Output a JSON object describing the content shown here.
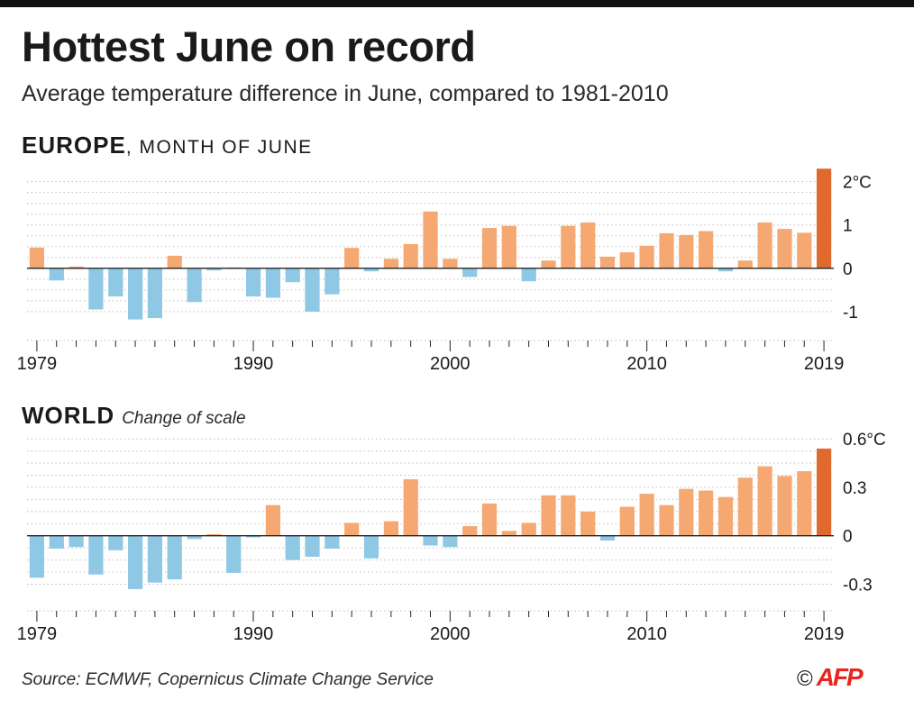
{
  "title": "Hottest June on record",
  "subtitle": "Average temperature difference in June, compared to 1981-2010",
  "source": "Source: ECMWF, Copernicus Climate Change Service",
  "credit": {
    "symbol": "©",
    "logo": "AFP"
  },
  "colors": {
    "negative": "#8fc8e4",
    "positive": "#f5a872",
    "latest": "#e0692e",
    "axis": "#222222",
    "grid": "#bdbdbd"
  },
  "europe": {
    "heading_big": "EUROPE",
    "heading_small": ", MONTH OF JUNE",
    "note": ""
  },
  "world": {
    "heading_big": "WORLD",
    "heading_small": "",
    "note": "Change of scale"
  },
  "chart_data": [
    {
      "type": "bar",
      "title": "EUROPE, MONTH OF JUNE",
      "x": [
        1979,
        1980,
        1981,
        1982,
        1983,
        1984,
        1985,
        1986,
        1987,
        1988,
        1989,
        1990,
        1991,
        1992,
        1993,
        1994,
        1995,
        1996,
        1997,
        1998,
        1999,
        2000,
        2001,
        2002,
        2003,
        2004,
        2005,
        2006,
        2007,
        2008,
        2009,
        2010,
        2011,
        2012,
        2013,
        2014,
        2015,
        2016,
        2017,
        2018,
        2019
      ],
      "values": [
        0.48,
        -0.28,
        0.04,
        -0.95,
        -0.65,
        -1.18,
        -1.15,
        0.29,
        -0.78,
        -0.05,
        0.02,
        -0.65,
        -0.68,
        -0.32,
        -1.0,
        -0.6,
        0.47,
        -0.07,
        0.22,
        0.56,
        1.31,
        0.22,
        -0.2,
        0.93,
        0.98,
        -0.3,
        0.18,
        0.98,
        1.06,
        0.27,
        0.37,
        0.52,
        0.81,
        0.77,
        0.86,
        -0.07,
        0.18,
        1.06,
        0.91,
        0.82,
        2.3
      ],
      "xticks": [
        "1979",
        "1990",
        "2000",
        "2010",
        "2019"
      ],
      "yticks": [
        "2°C",
        "1",
        "0",
        "-1"
      ],
      "ytick_values": [
        2,
        1,
        0,
        -1
      ],
      "ylim": [
        -1.5,
        2.45
      ],
      "grid": true,
      "unit": "°C"
    },
    {
      "type": "bar",
      "title": "WORLD",
      "annotation": "Change of scale",
      "x": [
        1979,
        1980,
        1981,
        1982,
        1983,
        1984,
        1985,
        1986,
        1987,
        1988,
        1989,
        1990,
        1991,
        1992,
        1993,
        1994,
        1995,
        1996,
        1997,
        1998,
        1999,
        2000,
        2001,
        2002,
        2003,
        2004,
        2005,
        2006,
        2007,
        2008,
        2009,
        2010,
        2011,
        2012,
        2013,
        2014,
        2015,
        2016,
        2017,
        2018,
        2019
      ],
      "values": [
        -0.26,
        -0.08,
        -0.07,
        -0.24,
        -0.09,
        -0.33,
        -0.29,
        -0.27,
        -0.02,
        0.01,
        -0.23,
        -0.01,
        0.19,
        -0.15,
        -0.13,
        -0.08,
        0.08,
        -0.14,
        0.09,
        0.35,
        -0.06,
        -0.07,
        0.06,
        0.2,
        0.03,
        0.08,
        0.25,
        0.25,
        0.15,
        -0.03,
        0.18,
        0.26,
        0.19,
        0.29,
        0.28,
        0.24,
        0.36,
        0.43,
        0.37,
        0.4,
        0.54
      ],
      "xticks": [
        "1979",
        "1990",
        "2000",
        "2010",
        "2019"
      ],
      "yticks": [
        "0.6°C",
        "0.3",
        "0",
        "-0.3"
      ],
      "ytick_values": [
        0.6,
        0.3,
        0,
        -0.3
      ],
      "ylim": [
        -0.42,
        0.64
      ],
      "grid": true,
      "unit": "°C"
    }
  ]
}
